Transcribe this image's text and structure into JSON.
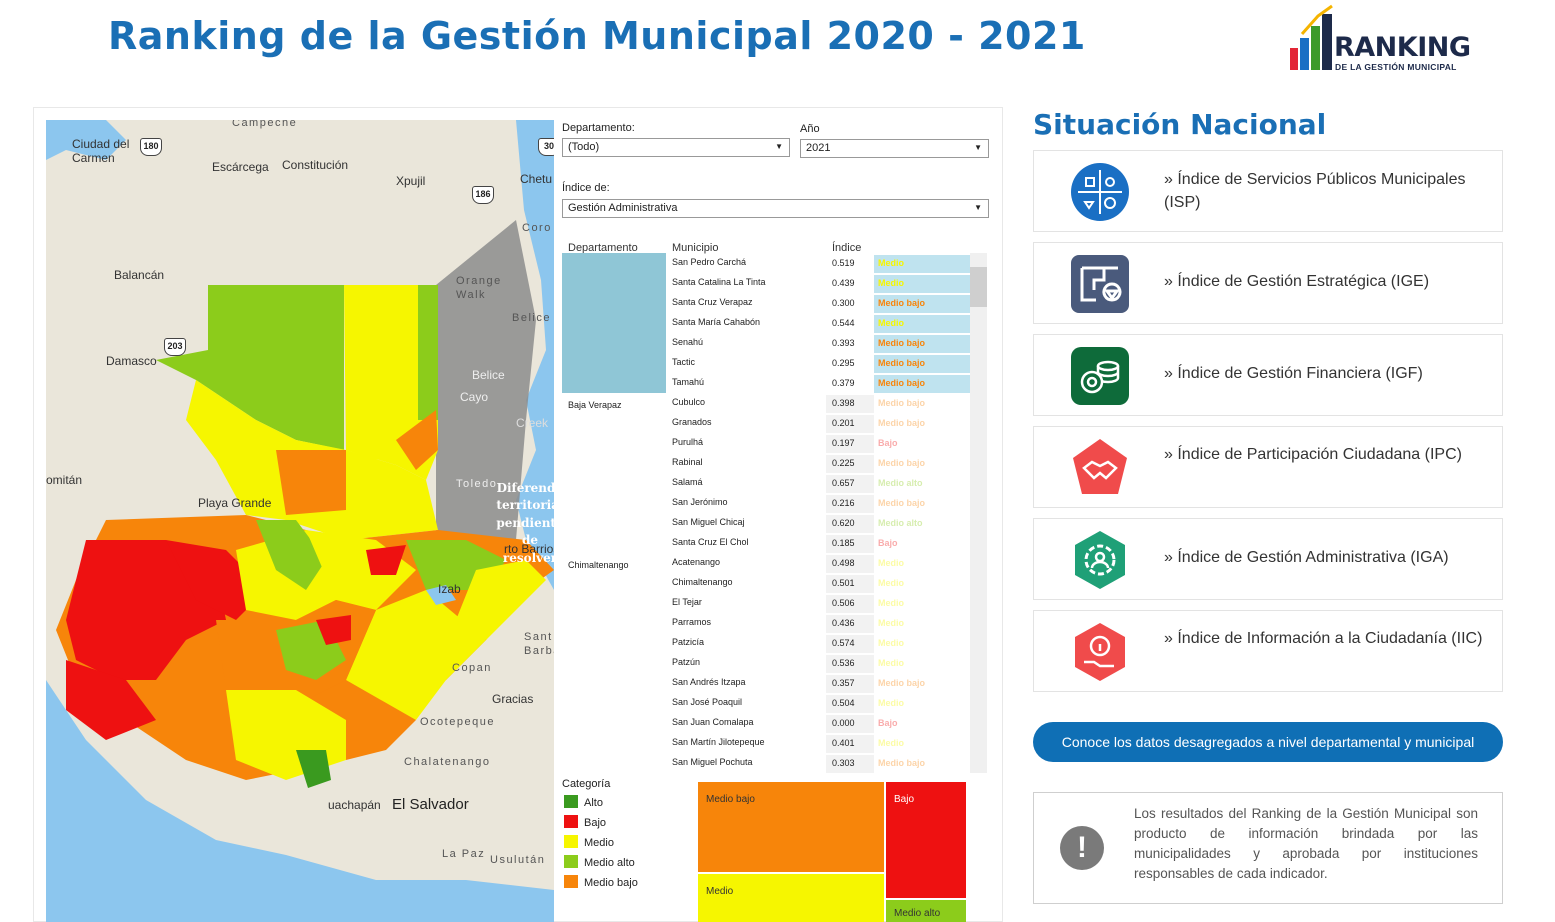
{
  "header": {
    "title": "Ranking de la Gestión Municipal 2020 - 2021",
    "logo_main": "RANKING",
    "logo_sub": "DE LA GESTIÓN MUNICIPAL"
  },
  "map": {
    "labels": {
      "campeche": "Campeche",
      "ciudad_del_carmen": "Ciudad del Carmen",
      "escarcega": "Escárcega",
      "constitucion": "Constitución",
      "xpujil": "Xpujil",
      "chetu": "Chetu",
      "coro": "Coro",
      "balancan": "Balancán",
      "orange_walk": "Orange Walk",
      "belice": "Belice",
      "belice2": "Belice",
      "cayo": "Cayo",
      "creek": "Creek",
      "damasco": "Damasco",
      "toledo": "Toledo",
      "comitan": "omitán",
      "playa_grande": "Playa Grande",
      "puerto_barrios": "rto Barrios",
      "izab": "Izab",
      "santa_barbara": "Sant Barba",
      "copan": "Copan",
      "gracias": "Gracias",
      "ocotepeque": "Ocotepeque",
      "chalatenango": "Chalatenango",
      "ahuachapan": "uachapán",
      "el_salvador": "El Salvador",
      "la_paz": "La Paz",
      "usulutan": "Usulután"
    },
    "shields": {
      "s180": "180",
      "s186": "186",
      "s203": "203",
      "s30": "30"
    },
    "dispute_text": "Diferendo territorial pendiente de resolver"
  },
  "filters": {
    "departamento_label": "Departamento:",
    "departamento_value": "(Todo)",
    "anio_label": "Año",
    "anio_value": "2021",
    "indice_label": "Índice de:",
    "indice_value": "Gestión Administrativa"
  },
  "table": {
    "headers": {
      "departamento": "Departamento",
      "municipio": "Municipio",
      "indice": "Índice"
    },
    "rows": [
      {
        "dept": "",
        "mun": "San Pedro Carchá",
        "idx": "0.519",
        "cat": "Medio"
      },
      {
        "dept": "",
        "mun": "Santa Catalina La Tinta",
        "idx": "0.439",
        "cat": "Medio"
      },
      {
        "dept": "",
        "mun": "Santa Cruz Verapaz",
        "idx": "0.300",
        "cat": "Medio bajo"
      },
      {
        "dept": "",
        "mun": "Santa María Cahabón",
        "idx": "0.544",
        "cat": "Medio"
      },
      {
        "dept": "",
        "mun": "Senahú",
        "idx": "0.393",
        "cat": "Medio bajo"
      },
      {
        "dept": "",
        "mun": "Tactic",
        "idx": "0.295",
        "cat": "Medio bajo"
      },
      {
        "dept": "",
        "mun": "Tamahú",
        "idx": "0.379",
        "cat": "Medio bajo"
      },
      {
        "dept": "Baja Verapaz",
        "mun": "Cubulco",
        "idx": "0.398",
        "cat": "Medio bajo"
      },
      {
        "dept": "",
        "mun": "Granados",
        "idx": "0.201",
        "cat": "Medio bajo"
      },
      {
        "dept": "",
        "mun": "Purulhá",
        "idx": "0.197",
        "cat": "Bajo"
      },
      {
        "dept": "",
        "mun": "Rabinal",
        "idx": "0.225",
        "cat": "Medio bajo"
      },
      {
        "dept": "",
        "mun": "Salamá",
        "idx": "0.657",
        "cat": "Medio alto"
      },
      {
        "dept": "",
        "mun": "San Jerónimo",
        "idx": "0.216",
        "cat": "Medio bajo"
      },
      {
        "dept": "",
        "mun": "San Miguel Chicaj",
        "idx": "0.620",
        "cat": "Medio alto"
      },
      {
        "dept": "",
        "mun": "Santa Cruz El Chol",
        "idx": "0.185",
        "cat": "Bajo"
      },
      {
        "dept": "Chimaltenango",
        "mun": "Acatenango",
        "idx": "0.498",
        "cat": "Medio"
      },
      {
        "dept": "",
        "mun": "Chimaltenango",
        "idx": "0.501",
        "cat": "Medio"
      },
      {
        "dept": "",
        "mun": "El Tejar",
        "idx": "0.506",
        "cat": "Medio"
      },
      {
        "dept": "",
        "mun": "Parramos",
        "idx": "0.436",
        "cat": "Medio"
      },
      {
        "dept": "",
        "mun": "Patzicía",
        "idx": "0.574",
        "cat": "Medio"
      },
      {
        "dept": "",
        "mun": "Patzún",
        "idx": "0.536",
        "cat": "Medio"
      },
      {
        "dept": "",
        "mun": "San Andrés Itzapa",
        "idx": "0.357",
        "cat": "Medio bajo"
      },
      {
        "dept": "",
        "mun": "San José Poaquil",
        "idx": "0.504",
        "cat": "Medio"
      },
      {
        "dept": "",
        "mun": "San Juan Comalapa",
        "idx": "0.000",
        "cat": "Bajo"
      },
      {
        "dept": "",
        "mun": "San Martín Jilotepeque",
        "idx": "0.401",
        "cat": "Medio"
      },
      {
        "dept": "",
        "mun": "San Miguel Pochuta",
        "idx": "0.303",
        "cat": "Medio bajo"
      }
    ]
  },
  "legend": {
    "title": "Categoría",
    "items": [
      {
        "label": "Alto",
        "color": "#3a9a1f"
      },
      {
        "label": "Bajo",
        "color": "#ee1111"
      },
      {
        "label": "Medio",
        "color": "#f6f600"
      },
      {
        "label": "Medio alto",
        "color": "#8ccc1b"
      },
      {
        "label": "Medio bajo",
        "color": "#f7850a"
      }
    ]
  },
  "treemap": {
    "medio_bajo": "Medio bajo",
    "bajo": "Bajo",
    "medio": "Medio",
    "medio_alto": "Medio alto"
  },
  "situacion": {
    "title": "Situación Nacional",
    "cards": [
      {
        "text": "» Índice de Servicios Públicos Municipales (ISP)",
        "color": "#1a6fc4"
      },
      {
        "text": "» Índice de Gestión Estratégica (IGE)",
        "color": "#4a5a7c"
      },
      {
        "text": "» Índice de Gestión Financiera (IGF)",
        "color": "#0e6b3a"
      },
      {
        "text": "» Índice de Participación Ciudadana (IPC)",
        "color": "#f04b4b"
      },
      {
        "text": "» Índice de Gestión Administrativa (IGA)",
        "color": "#1fa077"
      },
      {
        "text": "» Índice de Información a la Ciudadanía (IIC)",
        "color": "#f04b4b"
      }
    ],
    "cta": "Conoce los datos desagregados a nivel departamental y municipal",
    "note": "Los resultados del Ranking de la Gestión Municipal son producto de información brindada por las municipalidades y aprobada por instituciones responsables de cada indicador."
  },
  "colors": {
    "brand_blue": "#1a6fb5",
    "alto": "#3a9a1f",
    "bajo": "#ee1111",
    "medio": "#f6f600",
    "medio_alto": "#8ccc1b",
    "medio_bajo": "#f7850a"
  }
}
